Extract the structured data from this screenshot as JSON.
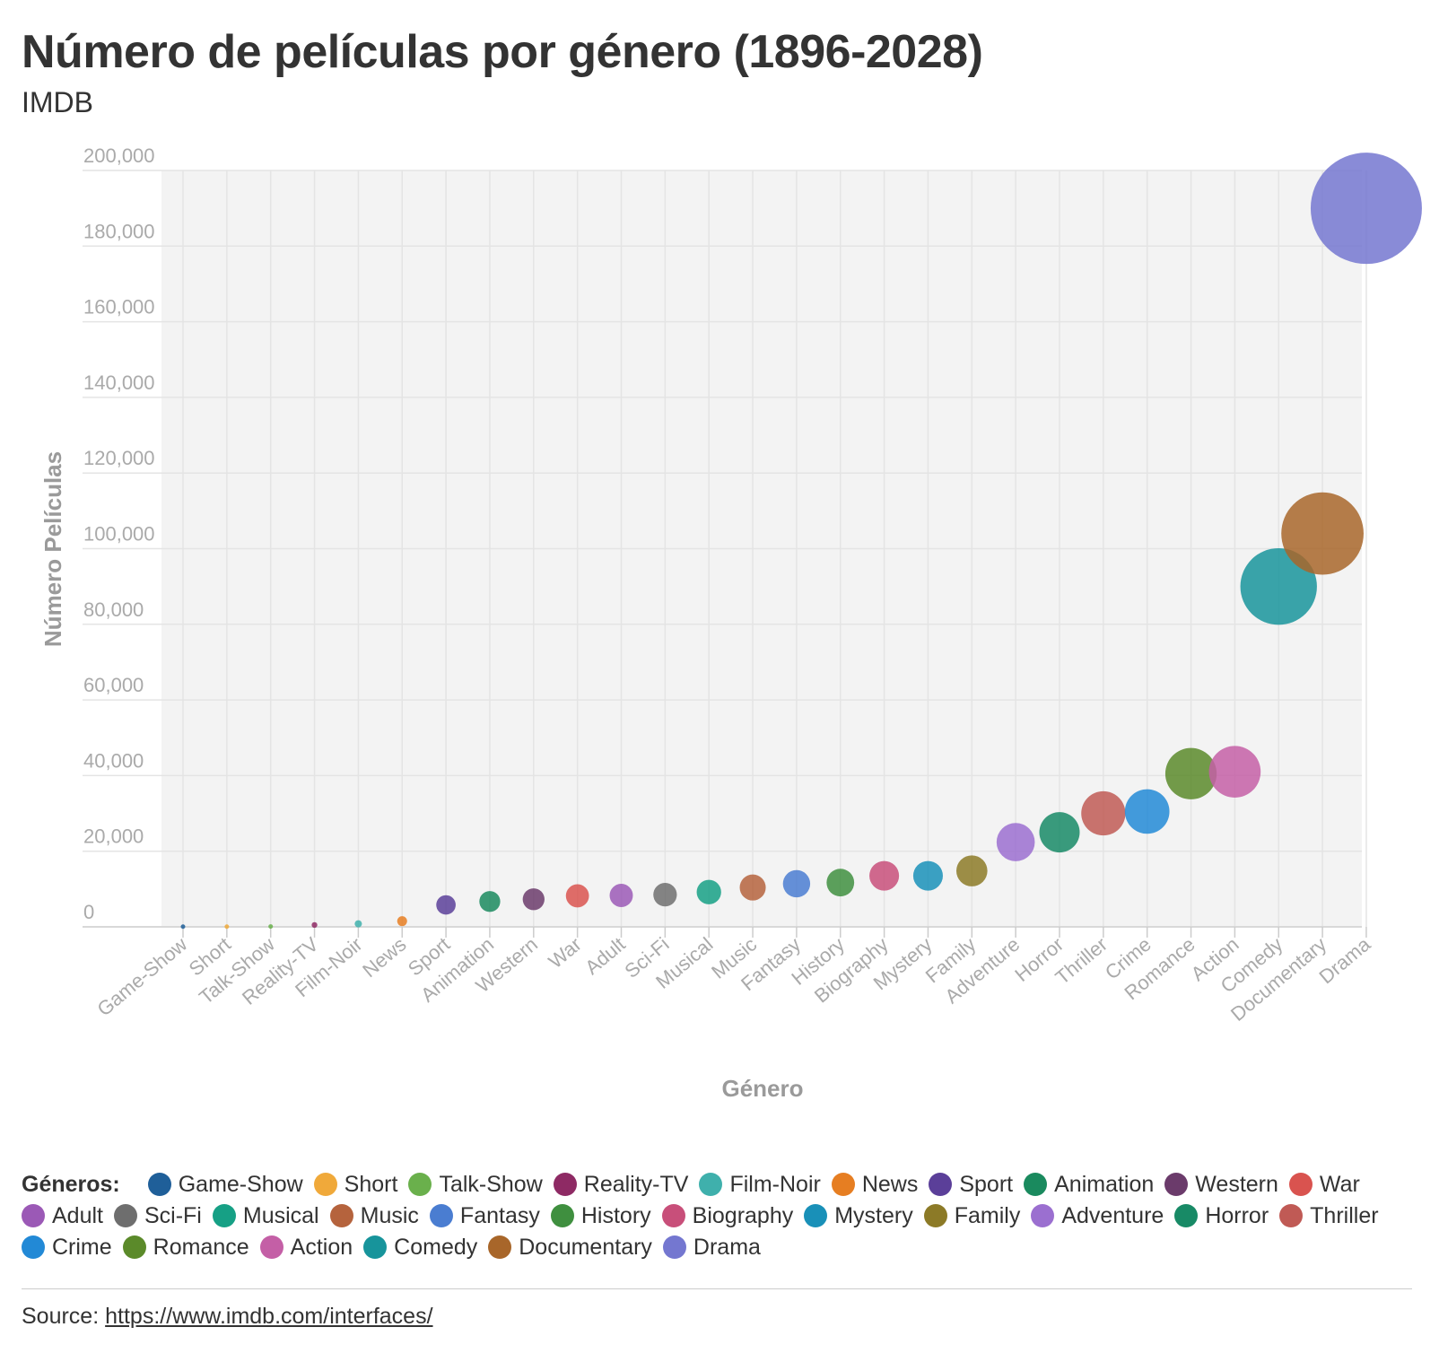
{
  "header": {
    "title": "Número de películas por género (1896-2028)",
    "subtitle": "IMDB"
  },
  "chart_data": {
    "type": "scatter",
    "xlabel": "Género",
    "ylabel": "Número Películas",
    "ylim": [
      0,
      200000
    ],
    "yticks": [
      0,
      20000,
      40000,
      60000,
      80000,
      100000,
      120000,
      140000,
      160000,
      180000,
      200000
    ],
    "ytick_labels": [
      "0",
      "20,000",
      "40,000",
      "60,000",
      "80,000",
      "100,000",
      "120,000",
      "140,000",
      "160,000",
      "180,000",
      "200,000"
    ],
    "grid": true,
    "bubble_size": "value",
    "categories": [
      "Game-Show",
      "Short",
      "Talk-Show",
      "Reality-TV",
      "Film-Noir",
      "News",
      "Sport",
      "Animation",
      "Western",
      "War",
      "Adult",
      "Sci-Fi",
      "Musical",
      "Music",
      "Fantasy",
      "History",
      "Biography",
      "Mystery",
      "Family",
      "Adventure",
      "Horror",
      "Thriller",
      "Crime",
      "Romance",
      "Action",
      "Comedy",
      "Documentary",
      "Drama"
    ],
    "values": [
      50,
      50,
      100,
      500,
      800,
      1500,
      5800,
      6700,
      7300,
      8200,
      8300,
      8500,
      9200,
      10400,
      11400,
      11700,
      13500,
      13500,
      14800,
      22400,
      25000,
      30000,
      30500,
      40500,
      41000,
      90000,
      104000,
      190000
    ],
    "colors": [
      "#1f5f99",
      "#f0a93a",
      "#6ab04c",
      "#8e2a64",
      "#3fb0ac",
      "#e67e22",
      "#5b3f99",
      "#1a8a5e",
      "#6b3b6b",
      "#d9534f",
      "#9b59b6",
      "#6e6e6e",
      "#16a085",
      "#b5633d",
      "#4a7dd1",
      "#3f8f3f",
      "#c84f7a",
      "#1990b8",
      "#8c7a27",
      "#9b6fd0",
      "#188a66",
      "#c05a55",
      "#2289d6",
      "#5b8a2a",
      "#c45fa6",
      "#17949b",
      "#a8662a",
      "#7477d0"
    ],
    "legend_title": "Géneros:",
    "legend_placement": "bottom"
  },
  "footer": {
    "source_label": "Source:",
    "source_link": "https://www.imdb.com/interfaces/"
  }
}
